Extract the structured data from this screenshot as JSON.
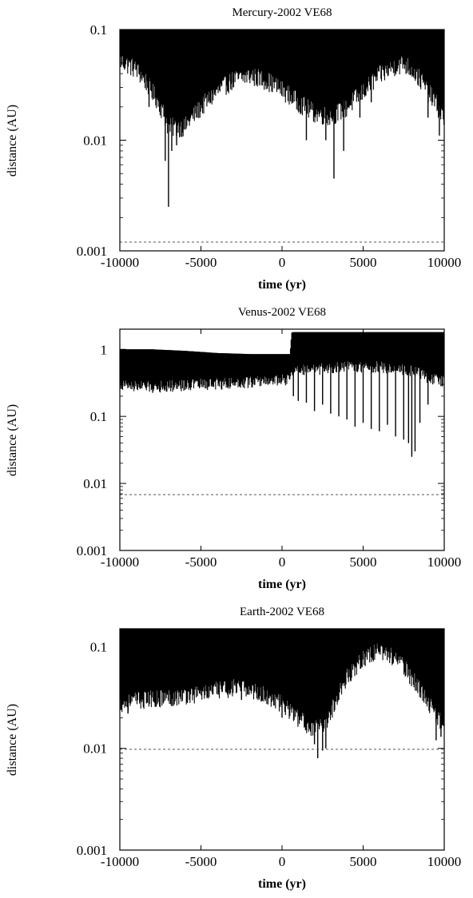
{
  "chart_data": [
    {
      "type": "line",
      "title": "Mercury-2002 VE68",
      "xlabel": "time (yr)",
      "ylabel": "distance (AU)",
      "xlim": [
        -10000,
        10000
      ],
      "ylim": [
        0.001,
        0.1
      ],
      "yscale": "log",
      "xticks": [
        -10000,
        -5000,
        0,
        5000,
        10000
      ],
      "xtick_labels": [
        "-10000",
        "-5000",
        "0",
        "5000",
        "10000"
      ],
      "yticks": [
        0.001,
        0.01,
        0.1
      ],
      "ytick_labels": [
        "0.001",
        "0.01",
        "0.1"
      ],
      "grid": false,
      "legend": "none",
      "series": [
        {
          "kind": "oscillating-band",
          "color": "#000000",
          "x": [
            -10000,
            -9000,
            -8000,
            -7000,
            -6000,
            -5000,
            -4000,
            -3000,
            -2000,
            -1000,
            0,
            1000,
            2000,
            3000,
            4000,
            5000,
            6000,
            7000,
            7500,
            8000,
            9000,
            10000
          ],
          "y_min": [
            0.048,
            0.04,
            0.025,
            0.012,
            0.012,
            0.018,
            0.025,
            0.032,
            0.035,
            0.032,
            0.026,
            0.02,
            0.016,
            0.015,
            0.018,
            0.025,
            0.035,
            0.043,
            0.045,
            0.04,
            0.025,
            0.014
          ],
          "y_max": [
            0.1,
            0.1,
            0.1,
            0.1,
            0.1,
            0.1,
            0.1,
            0.1,
            0.1,
            0.1,
            0.1,
            0.1,
            0.1,
            0.1,
            0.1,
            0.1,
            0.1,
            0.1,
            0.1,
            0.1,
            0.1,
            0.1
          ],
          "dips": [
            [
              -7000,
              0.0025
            ],
            [
              -7200,
              0.0065
            ],
            [
              -6800,
              0.008
            ],
            [
              -6500,
              0.009
            ],
            [
              -8200,
              0.02
            ],
            [
              -5500,
              0.02
            ],
            [
              -3000,
              0.03
            ],
            [
              1500,
              0.01
            ],
            [
              3200,
              0.0045
            ],
            [
              3800,
              0.008
            ],
            [
              2700,
              0.01
            ],
            [
              4800,
              0.016
            ],
            [
              5500,
              0.022
            ],
            [
              9000,
              0.016
            ],
            [
              9700,
              0.011
            ]
          ]
        },
        {
          "kind": "threshold",
          "style": "dashed",
          "color": "#555555",
          "y": 0.0012
        }
      ]
    },
    {
      "type": "line",
      "title": "Venus-2002 VE68",
      "xlabel": "time (yr)",
      "ylabel": "distance (AU)",
      "xlim": [
        -10000,
        10000
      ],
      "ylim": [
        0.001,
        2
      ],
      "yscale": "log",
      "xticks": [
        -10000,
        -5000,
        0,
        5000,
        10000
      ],
      "xtick_labels": [
        "-10000",
        "-5000",
        "0",
        "5000",
        "10000"
      ],
      "yticks": [
        0.001,
        0.01,
        0.1,
        1
      ],
      "ytick_labels": [
        "0.001",
        "0.01",
        "0.1",
        "1"
      ],
      "grid": false,
      "legend": "none",
      "series": [
        {
          "kind": "oscillating-band",
          "color": "#000000",
          "x": [
            -10000,
            -8000,
            -6000,
            -4000,
            -2000,
            0,
            500,
            600,
            2000,
            4000,
            6000,
            8000,
            9000,
            10000
          ],
          "y_min": [
            0.27,
            0.25,
            0.27,
            0.28,
            0.3,
            0.32,
            0.33,
            0.45,
            0.45,
            0.5,
            0.5,
            0.45,
            0.35,
            0.3
          ],
          "y_max": [
            1.0,
            1.0,
            0.95,
            0.88,
            0.85,
            0.85,
            0.85,
            1.8,
            1.8,
            1.8,
            1.8,
            1.8,
            1.8,
            1.8
          ],
          "dips": [
            [
              700,
              0.2
            ],
            [
              1000,
              0.17
            ],
            [
              1500,
              0.16
            ],
            [
              2000,
              0.12
            ],
            [
              2500,
              0.15
            ],
            [
              3000,
              0.11
            ],
            [
              3500,
              0.1
            ],
            [
              4000,
              0.09
            ],
            [
              4500,
              0.07
            ],
            [
              5000,
              0.08
            ],
            [
              5500,
              0.065
            ],
            [
              6000,
              0.06
            ],
            [
              6500,
              0.075
            ],
            [
              7000,
              0.05
            ],
            [
              7500,
              0.045
            ],
            [
              7800,
              0.04
            ],
            [
              8000,
              0.025
            ],
            [
              8200,
              0.03
            ],
            [
              8500,
              0.08
            ],
            [
              9000,
              0.15
            ]
          ]
        },
        {
          "kind": "threshold",
          "style": "dashed",
          "color": "#555555",
          "y": 0.0068
        }
      ]
    },
    {
      "type": "line",
      "title": "Earth-2002 VE68",
      "xlabel": "time (yr)",
      "ylabel": "distance (AU)",
      "xlim": [
        -10000,
        10000
      ],
      "ylim": [
        0.001,
        0.15
      ],
      "yscale": "log",
      "xticks": [
        -10000,
        -5000,
        0,
        5000,
        10000
      ],
      "xtick_labels": [
        "-10000",
        "-5000",
        "0",
        "5000",
        "10000"
      ],
      "yticks": [
        0.001,
        0.01,
        0.1
      ],
      "ytick_labels": [
        "0.001",
        "0.01",
        "0.1"
      ],
      "grid": false,
      "legend": "none",
      "series": [
        {
          "kind": "oscillating-band",
          "color": "#000000",
          "x": [
            -10000,
            -9000,
            -8000,
            -7000,
            -6000,
            -5000,
            -4000,
            -3000,
            -2000,
            -1000,
            0,
            1000,
            2000,
            2500,
            3000,
            4000,
            5000,
            6000,
            7000,
            8000,
            9000,
            10000
          ],
          "y_min": [
            0.025,
            0.027,
            0.028,
            0.029,
            0.03,
            0.032,
            0.034,
            0.036,
            0.035,
            0.03,
            0.025,
            0.018,
            0.014,
            0.015,
            0.02,
            0.045,
            0.07,
            0.085,
            0.07,
            0.045,
            0.025,
            0.015
          ],
          "y_max": [
            0.15,
            0.15,
            0.15,
            0.15,
            0.15,
            0.15,
            0.15,
            0.15,
            0.15,
            0.15,
            0.15,
            0.15,
            0.15,
            0.15,
            0.15,
            0.15,
            0.15,
            0.15,
            0.15,
            0.15,
            0.15,
            0.15
          ],
          "dips": [
            [
              2000,
              0.011
            ],
            [
              2200,
              0.008
            ],
            [
              2500,
              0.0095
            ],
            [
              2700,
              0.01
            ],
            [
              1700,
              0.018
            ],
            [
              3500,
              0.03
            ],
            [
              -9500,
              0.022
            ],
            [
              9500,
              0.012
            ],
            [
              9800,
              0.013
            ],
            [
              -2500,
              0.03
            ],
            [
              0,
              0.02
            ]
          ]
        },
        {
          "kind": "threshold",
          "style": "dashed",
          "color": "#555555",
          "y": 0.0098
        }
      ]
    }
  ]
}
